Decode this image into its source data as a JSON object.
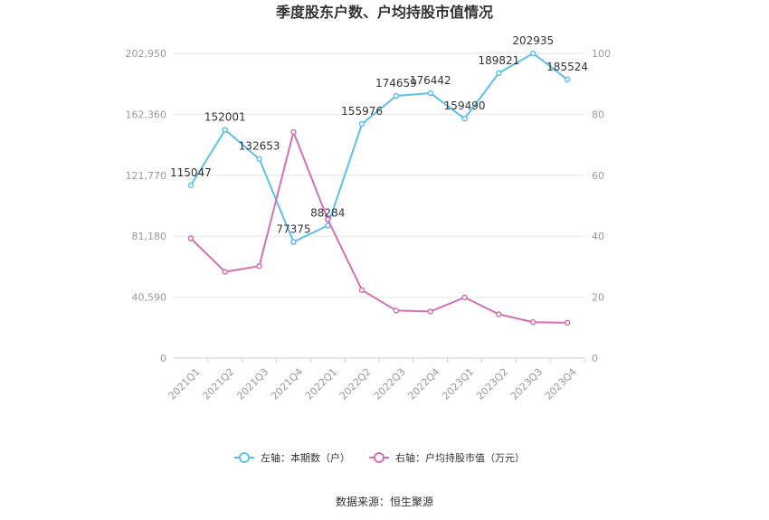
{
  "chart_data": {
    "type": "line",
    "title": "季度股东户数、户均持股市值情况",
    "categories": [
      "2021Q1",
      "2021Q2",
      "2021Q3",
      "2021Q4",
      "2022Q1",
      "2022Q2",
      "2022Q3",
      "2022Q4",
      "2023Q1",
      "2023Q2",
      "2023Q3",
      "2023Q4"
    ],
    "left_axis": {
      "ticks": [
        "0",
        "40,590",
        "81,180",
        "121,770",
        "162,360",
        "202,950"
      ],
      "min": 0,
      "max": 202950
    },
    "right_axis": {
      "ticks": [
        "0",
        "20",
        "40",
        "60",
        "80",
        "100"
      ],
      "min": 0,
      "max": 100
    },
    "series": [
      {
        "name": "左轴：本期数（户）",
        "axis": "left",
        "color": "#5bc0eb",
        "values": [
          115047,
          152001,
          132653,
          77375,
          88284,
          155976,
          174659,
          176442,
          159490,
          189821,
          202935,
          185524
        ],
        "labels": [
          "115047",
          "152001",
          "132653",
          "77375",
          "88284",
          "155976",
          "174659",
          "176442",
          "159490",
          "189821",
          "202935",
          "185524"
        ]
      },
      {
        "name": "右轴：户均持股市值（万元）",
        "axis": "right",
        "color": "#d46fb4",
        "values": [
          39.3,
          28.3,
          30.2,
          74.2,
          45.5,
          22.3,
          15.6,
          15.3,
          19.9,
          14.4,
          11.8,
          11.6
        ]
      }
    ],
    "grid": true,
    "legend_position": "bottom"
  },
  "footer": {
    "source": "数据来源：恒生聚源"
  }
}
